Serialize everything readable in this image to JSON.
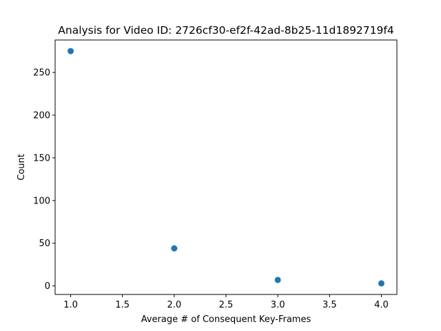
{
  "chart_data": {
    "type": "scatter",
    "title": "Analysis for Video ID: 2726cf30-ef2f-42ad-8b25-11d1892719f4",
    "xlabel": "Average # of Consequent Key-Frames",
    "ylabel": "Count",
    "xlim": [
      0.85,
      4.15
    ],
    "ylim": [
      -10,
      288
    ],
    "x_ticks": [
      1.0,
      1.5,
      2.0,
      2.5,
      3.0,
      3.5,
      4.0
    ],
    "x_tick_labels": [
      "1.0",
      "1.5",
      "2.0",
      "2.5",
      "3.0",
      "3.5",
      "4.0"
    ],
    "y_ticks": [
      0,
      50,
      100,
      150,
      200,
      250
    ],
    "y_tick_labels": [
      "0",
      "50",
      "100",
      "150",
      "200",
      "250"
    ],
    "grid": false,
    "point_color": "#1f77b4",
    "series": [
      {
        "x": [
          1.0,
          2.0,
          3.0,
          4.0
        ],
        "y": [
          275,
          44,
          7,
          3
        ]
      }
    ]
  }
}
